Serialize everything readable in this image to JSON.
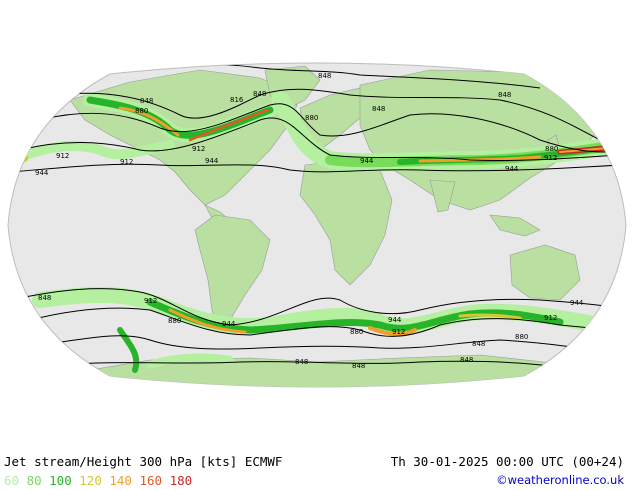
{
  "header": {
    "title": "Jet stream/Height 300 hPa [kts] ECMWF",
    "datetime": "Th 30-01-2025 00:00 UTC (00+24)"
  },
  "legend": {
    "items": [
      {
        "label": "60",
        "color": "#b4f0a0"
      },
      {
        "label": "80",
        "color": "#78dc5a"
      },
      {
        "label": "100",
        "color": "#28b428"
      },
      {
        "label": "120",
        "color": "#d2c832"
      },
      {
        "label": "140",
        "color": "#f0a028"
      },
      {
        "label": "160",
        "color": "#e05a28"
      },
      {
        "label": "180",
        "color": "#c82828"
      }
    ]
  },
  "credit": "©weatheronline.co.uk",
  "map": {
    "contour_labels": [
      "848",
      "848",
      "816",
      "848",
      "880",
      "912",
      "944",
      "912",
      "944",
      "880",
      "912",
      "944",
      "880",
      "912",
      "944",
      "848",
      "848",
      "848",
      "912",
      "880",
      "944",
      "944",
      "880",
      "912",
      "944",
      "880",
      "912",
      "848",
      "848",
      "848",
      "848"
    ]
  }
}
